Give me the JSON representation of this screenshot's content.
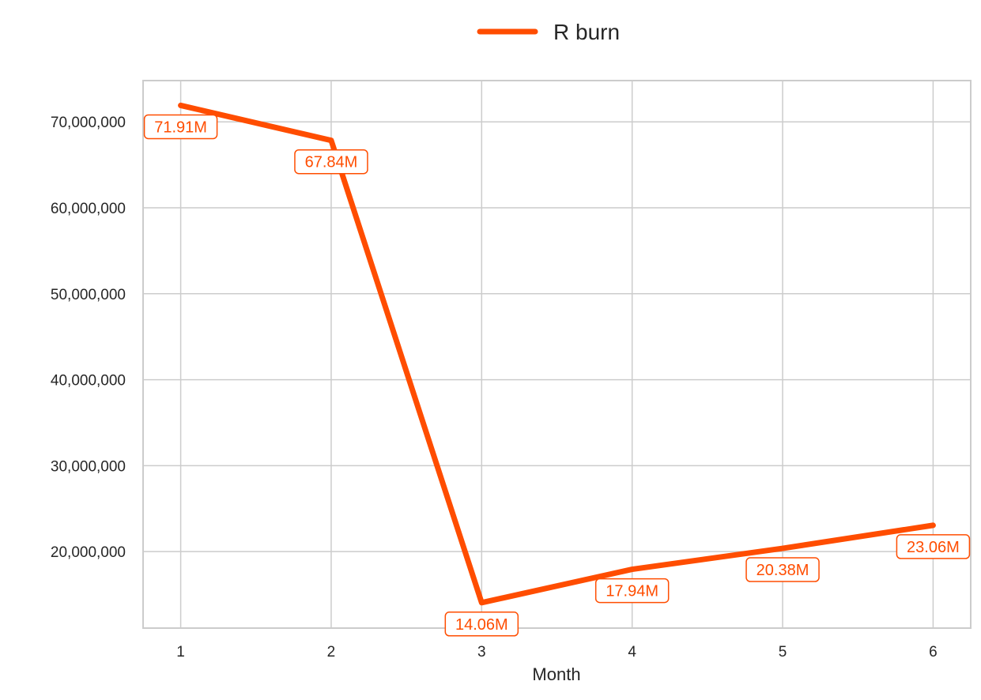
{
  "chart_data": {
    "type": "line",
    "title": "",
    "xlabel": "Month",
    "ylabel": "",
    "x": [
      1,
      2,
      3,
      4,
      5,
      6
    ],
    "x_ticks": [
      "1",
      "2",
      "3",
      "4",
      "5",
      "6"
    ],
    "xlim": [
      0.75,
      6.25
    ],
    "ylim": [
      11100000,
      74800000
    ],
    "y_ticks": [
      20000000,
      30000000,
      40000000,
      50000000,
      60000000,
      70000000
    ],
    "y_tick_labels": [
      "20,000,000",
      "30,000,000",
      "40,000,000",
      "50,000,000",
      "60,000,000",
      "70,000,000"
    ],
    "grid": true,
    "legend_position": "top-center",
    "series": [
      {
        "name": "R burn",
        "color": "#ff4d00",
        "values": [
          71910000,
          67840000,
          14060000,
          17940000,
          20380000,
          23060000
        ],
        "labels": [
          "71.91M",
          "67.84M",
          "14.06M",
          "17.94M",
          "20.38M",
          "23.06M"
        ]
      }
    ]
  }
}
